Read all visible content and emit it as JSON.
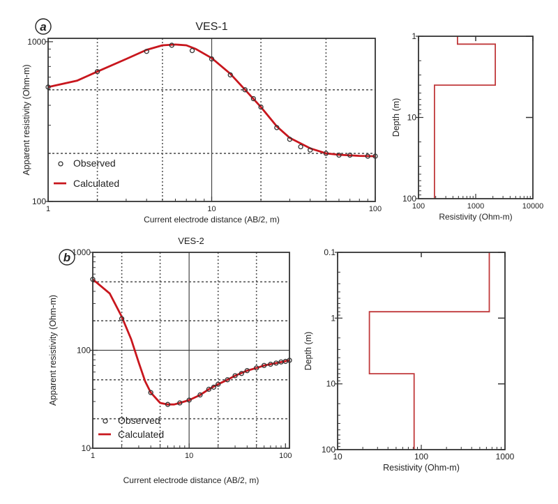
{
  "chart_data": [
    {
      "id": "a-main",
      "panel_label": "a",
      "type": "line",
      "title": "VES-1",
      "xlabel": "Current electrode distance (AB/2, m)",
      "ylabel": "Apparent resistivity (Ohm-m)",
      "xscale": "log",
      "yscale": "log",
      "xlim": [
        1,
        100
      ],
      "ylim": [
        100,
        1000
      ],
      "xticks": [
        {
          "v": 1,
          "label": "1"
        },
        {
          "v": 10,
          "label": "10"
        },
        {
          "v": 100,
          "label": "100"
        }
      ],
      "yticks": [
        {
          "v": 100,
          "label": "100"
        },
        {
          "v": 1000,
          "label": "1000"
        }
      ],
      "grid_x": [
        2,
        5,
        20,
        50
      ],
      "grid_x_solid": [
        10
      ],
      "grid_y": [
        200,
        500
      ],
      "legend": {
        "position": "bottom-left",
        "entries": [
          "Observed",
          "Calculated"
        ]
      },
      "series": [
        {
          "name": "Observed",
          "kind": "markers",
          "x": [
            1,
            2,
            4,
            5.7,
            7.6,
            10,
            13,
            16,
            18,
            20,
            25,
            30,
            35,
            40,
            50,
            60,
            70,
            90,
            100
          ],
          "y": [
            520,
            650,
            870,
            950,
            880,
            780,
            620,
            500,
            440,
            390,
            290,
            245,
            220,
            210,
            200,
            195,
            195,
            192,
            192
          ]
        },
        {
          "name": "Calculated",
          "kind": "line",
          "x": [
            1,
            1.5,
            2,
            3,
            4,
            5,
            6,
            7,
            8,
            10,
            13,
            16,
            20,
            25,
            30,
            40,
            50,
            60,
            80,
            100
          ],
          "y": [
            520,
            570,
            650,
            780,
            890,
            950,
            960,
            950,
            900,
            790,
            630,
            500,
            390,
            295,
            250,
            215,
            200,
            196,
            193,
            192
          ]
        }
      ]
    },
    {
      "id": "a-model",
      "type": "line",
      "xlabel": "Resistivity (Ohm-m)",
      "ylabel": "Depth (m)",
      "xscale": "log",
      "yscale": "log",
      "xlim": [
        100,
        10000
      ],
      "ylim": [
        1,
        100
      ],
      "y_inverted": true,
      "xticks": [
        {
          "v": 100,
          "label": "100"
        },
        {
          "v": 1000,
          "label": "1000"
        },
        {
          "v": 10000,
          "label": "10000"
        }
      ],
      "yticks": [
        {
          "v": 1,
          "label": "1"
        },
        {
          "v": 10,
          "label": "10"
        },
        {
          "v": 100,
          "label": "100"
        }
      ],
      "layers": [
        {
          "resistivity": 480,
          "top": 1,
          "bottom": 1.25
        },
        {
          "resistivity": 2200,
          "top": 1.25,
          "bottom": 4
        },
        {
          "resistivity": 190,
          "top": 4,
          "bottom": 100
        }
      ]
    },
    {
      "id": "b-main",
      "panel_label": "b",
      "type": "line",
      "title": "VES-2",
      "xlabel": "Current electrode distance (AB/2, m)",
      "ylabel": "Apparent resistivity (Ohm-m)",
      "xscale": "log",
      "yscale": "log",
      "xlim": [
        1,
        110
      ],
      "ylim": [
        10,
        1000
      ],
      "xticks": [
        {
          "v": 1,
          "label": "1"
        },
        {
          "v": 10,
          "label": "10"
        },
        {
          "v": 100,
          "label": "100"
        }
      ],
      "yticks": [
        {
          "v": 10,
          "label": "10"
        },
        {
          "v": 100,
          "label": "100"
        },
        {
          "v": 1000,
          "label": "1000"
        }
      ],
      "grid_x": [
        2,
        5,
        20,
        50
      ],
      "grid_x_solid": [
        10
      ],
      "grid_y": [
        20,
        50,
        200,
        500
      ],
      "grid_y_solid": [
        100
      ],
      "legend": {
        "position": "bottom-left",
        "entries": [
          "Observed",
          "Calculated"
        ]
      },
      "series": [
        {
          "name": "Observed",
          "kind": "markers",
          "x": [
            1,
            2,
            4,
            6,
            8,
            10,
            13,
            16,
            18,
            20,
            25,
            30,
            35,
            40,
            50,
            60,
            70,
            80,
            90,
            100,
            110
          ],
          "y": [
            530,
            210,
            37,
            28,
            29,
            31,
            35,
            40,
            42,
            45,
            50,
            55,
            58,
            62,
            66,
            70,
            72,
            74,
            76,
            77,
            79
          ]
        },
        {
          "name": "Calculated",
          "kind": "line",
          "x": [
            1,
            1.5,
            2,
            2.5,
            3,
            3.5,
            4,
            5,
            6,
            7,
            8,
            10,
            13,
            16,
            20,
            25,
            30,
            40,
            50,
            60,
            80,
            110
          ],
          "y": [
            530,
            380,
            220,
            130,
            75,
            48,
            37,
            29,
            28,
            28,
            29,
            31,
            35,
            40,
            45,
            50,
            55,
            62,
            66,
            70,
            74,
            79
          ]
        }
      ]
    },
    {
      "id": "b-model",
      "type": "line",
      "xlabel": "Resistivity (Ohm-m)",
      "ylabel": "Depth (m)",
      "xscale": "log",
      "yscale": "log",
      "xlim": [
        10,
        1000
      ],
      "ylim": [
        0.1,
        100
      ],
      "y_inverted": true,
      "xticks": [
        {
          "v": 10,
          "label": "10"
        },
        {
          "v": 100,
          "label": "100"
        },
        {
          "v": 1000,
          "label": "1000"
        }
      ],
      "yticks": [
        {
          "v": 0.1,
          "label": "0.1"
        },
        {
          "v": 1,
          "label": "1"
        },
        {
          "v": 10,
          "label": "10"
        },
        {
          "v": 100,
          "label": "100"
        }
      ],
      "layers": [
        {
          "resistivity": 650,
          "top": 0.1,
          "bottom": 0.8
        },
        {
          "resistivity": 24,
          "top": 0.8,
          "bottom": 7
        },
        {
          "resistivity": 82,
          "top": 7,
          "bottom": 100
        }
      ]
    }
  ],
  "colors": {
    "curve": "#c8161d",
    "model": "#c0393b",
    "axis": "#333333",
    "grid": "#555555",
    "marker": "#333333"
  }
}
